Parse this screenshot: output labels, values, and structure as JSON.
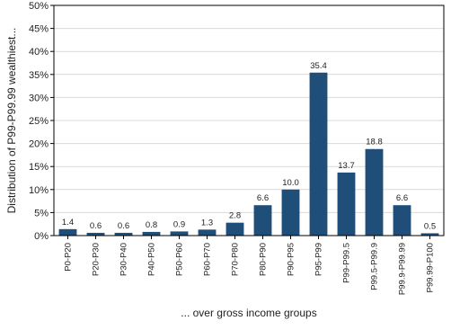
{
  "chart_data": {
    "type": "bar",
    "categories": [
      "P0-P20",
      "P20-P30",
      "P30-P40",
      "P40-P50",
      "P50-P60",
      "P60-P70",
      "P70-P80",
      "P80-P90",
      "P90-P95",
      "P95-P99",
      "P99-P99.5",
      "P99.5-P99.9",
      "P99.9-P99.99",
      "P99.99-P100"
    ],
    "values": [
      1.4,
      0.6,
      0.6,
      0.8,
      0.9,
      1.3,
      2.8,
      6.6,
      10.0,
      35.4,
      13.7,
      18.8,
      6.6,
      0.5
    ],
    "data_labels": [
      "1.4",
      "0.6",
      "0.6",
      "0.8",
      "0.9",
      "1.3",
      "2.8",
      "6.6",
      "10.0",
      "35.4",
      "13.7",
      "18.8",
      "6.6",
      "0.5"
    ],
    "xlabel": "... over gross income groups",
    "ylabel": "Distribution of P99-P99.99 wealthiest...",
    "ylim": [
      0,
      50
    ],
    "yticks": [
      0,
      5,
      10,
      15,
      20,
      25,
      30,
      35,
      40,
      45,
      50
    ],
    "ytick_labels": [
      "0%",
      "5%",
      "10%",
      "15%",
      "20%",
      "25%",
      "30%",
      "35%",
      "40%",
      "45%",
      "50%"
    ],
    "grid": "horizontal",
    "bar_color": "#1f4e79",
    "grid_color": "#d9d9d9"
  }
}
